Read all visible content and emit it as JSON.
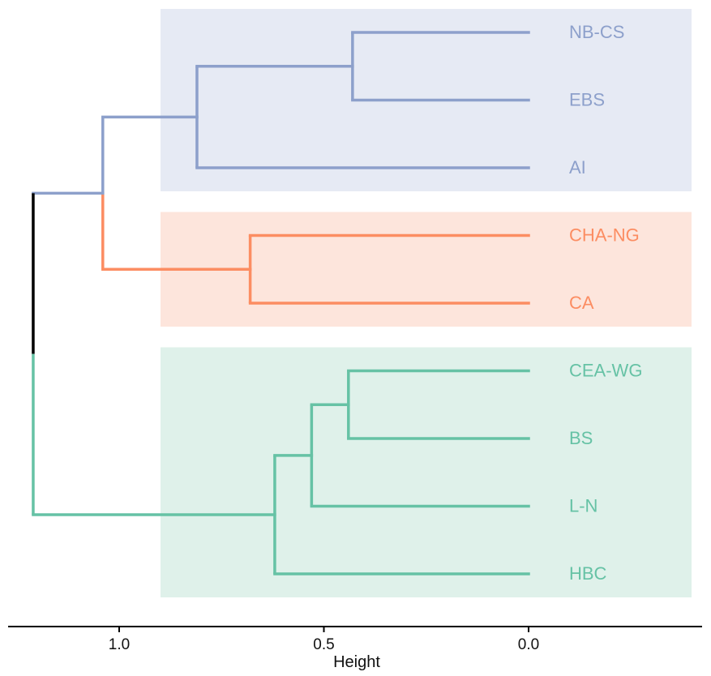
{
  "chart_data": {
    "type": "dendrogram",
    "orientation": "horizontal",
    "xlabel": "Height",
    "x_reversed": true,
    "xlim": [
      1.21,
      -0.21
    ],
    "x_ticks": [
      1.0,
      0.5,
      0.0
    ],
    "x_tick_labels": [
      "1.0",
      "0.5",
      "0.0"
    ],
    "leaves": [
      {
        "label": "NB-CS",
        "group": "blue"
      },
      {
        "label": "EBS",
        "group": "blue"
      },
      {
        "label": "AI",
        "group": "blue"
      },
      {
        "label": "CHA-NG",
        "group": "orange"
      },
      {
        "label": "CA",
        "group": "orange"
      },
      {
        "label": "CEA-WG",
        "group": "green"
      },
      {
        "label": "BS",
        "group": "green"
      },
      {
        "label": "L-N",
        "group": "green"
      },
      {
        "label": "HBC",
        "group": "green"
      }
    ],
    "merges": [
      {
        "children": [
          "NB-CS",
          "EBS"
        ],
        "height": 0.43,
        "group": "blue"
      },
      {
        "children": [
          "NB-CS+EBS",
          "AI"
        ],
        "height": 0.81,
        "group": "blue"
      },
      {
        "children": [
          "CHA-NG",
          "CA"
        ],
        "height": 0.68,
        "group": "orange"
      },
      {
        "children": [
          "blue-cluster",
          "orange-cluster"
        ],
        "height": 1.04,
        "group": "mixed"
      },
      {
        "children": [
          "CEA-WG",
          "BS"
        ],
        "height": 0.44,
        "group": "green"
      },
      {
        "children": [
          "CEA-WG+BS",
          "L-N"
        ],
        "height": 0.53,
        "group": "green"
      },
      {
        "children": [
          "CEA-WG+BS+L-N",
          "HBC"
        ],
        "height": 0.62,
        "group": "green"
      },
      {
        "children": [
          "blue+orange",
          "green-cluster"
        ],
        "height": 1.21,
        "group": "root"
      }
    ],
    "groups": {
      "blue": {
        "line_color": "#8da0cb",
        "band_color": "#e6eaf4",
        "leaves": [
          "NB-CS",
          "EBS",
          "AI"
        ]
      },
      "orange": {
        "line_color": "#fc8d62",
        "band_color": "#fde5dc",
        "leaves": [
          "CHA-NG",
          "CA"
        ]
      },
      "green": {
        "line_color": "#66c2a5",
        "band_color": "#dff1ea",
        "leaves": [
          "CEA-WG",
          "BS",
          "L-N",
          "HBC"
        ]
      }
    },
    "root_color": "#000000",
    "grid": false,
    "legend": "none"
  }
}
